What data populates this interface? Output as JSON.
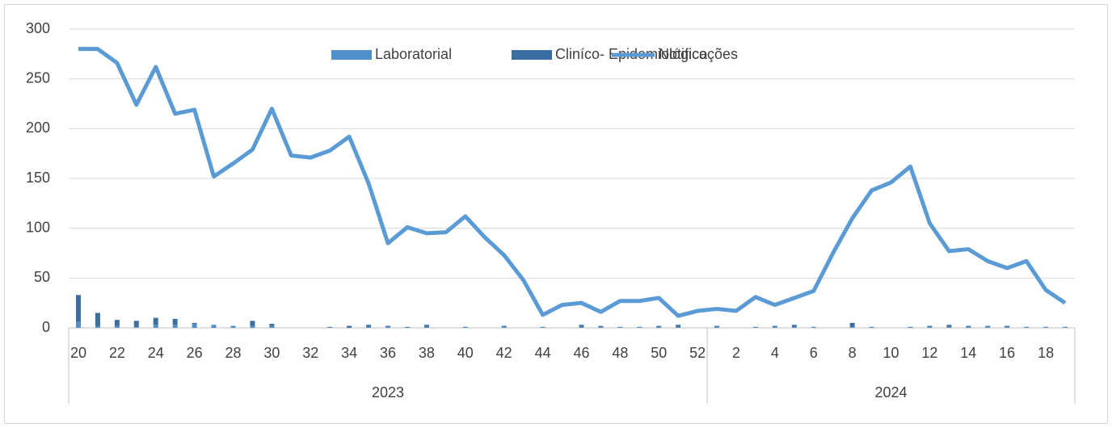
{
  "chart_data": {
    "type": "bar-line",
    "groups": [
      {
        "label": "2023",
        "categories": [
          "20",
          null,
          "22",
          null,
          "24",
          null,
          "26",
          null,
          "28",
          null,
          "30",
          null,
          "32",
          null,
          "34",
          null,
          "36",
          null,
          "38",
          null,
          "40",
          null,
          "42",
          null,
          "44",
          null,
          "46",
          null,
          "48",
          null,
          "50",
          null,
          "52"
        ]
      },
      {
        "label": "2024",
        "categories": [
          null,
          "2",
          null,
          "4",
          null,
          "6",
          null,
          "8",
          null,
          "10",
          null,
          "12",
          null,
          "14",
          null,
          "16",
          null,
          "18",
          null
        ]
      }
    ],
    "series": [
      {
        "name": "Laboratorial",
        "type": "bar",
        "color": "#4f8fca",
        "values": [
          6,
          2,
          2,
          1,
          3,
          3,
          4,
          3,
          2,
          2,
          2,
          0,
          0,
          1,
          0,
          1,
          1,
          1,
          1,
          0,
          1,
          0,
          1,
          0,
          1,
          0,
          1,
          1,
          1,
          1,
          1,
          1,
          0,
          1,
          0,
          1,
          1,
          1,
          1,
          0,
          1,
          1,
          0,
          1,
          1,
          1,
          1,
          1,
          1,
          1,
          1,
          1
        ]
      },
      {
        "name": "Cliníco- Epidemiológico",
        "type": "bar",
        "color": "#3c6e9f",
        "values": [
          27,
          13,
          6,
          6,
          7,
          6,
          1,
          0,
          0,
          5,
          2,
          0,
          0,
          0,
          2,
          2,
          1,
          0,
          2,
          0,
          0,
          0,
          1,
          0,
          0,
          0,
          2,
          1,
          0,
          0,
          1,
          2,
          0,
          1,
          0,
          0,
          1,
          2,
          0,
          0,
          4,
          0,
          0,
          0,
          1,
          2,
          1,
          1,
          1,
          0,
          0,
          0
        ]
      },
      {
        "name": "Notificações",
        "type": "line",
        "color": "#5b9bd5",
        "values": [
          280,
          280,
          266,
          224,
          262,
          215,
          219,
          152,
          165,
          179,
          220,
          173,
          171,
          178,
          192,
          145,
          85,
          101,
          95,
          96,
          112,
          91,
          73,
          48,
          13,
          23,
          25,
          16,
          27,
          27,
          30,
          12,
          17,
          19,
          17,
          31,
          23,
          30,
          37,
          75,
          110,
          138,
          146,
          162,
          105,
          77,
          79,
          67,
          60,
          67,
          38,
          25
        ]
      }
    ],
    "ylim": [
      0,
      300
    ],
    "yticks": [
      0,
      50,
      100,
      150,
      200,
      250,
      300
    ],
    "grid": true,
    "stacked": true,
    "legend": "top"
  }
}
